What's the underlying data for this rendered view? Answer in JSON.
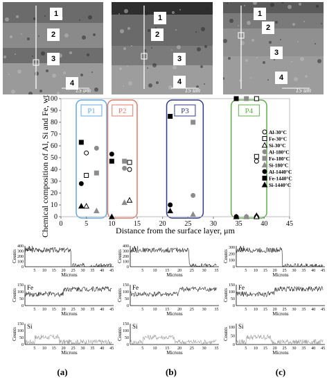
{
  "sem_images": [
    {
      "labels": [
        "1",
        "2",
        "3",
        "4"
      ],
      "scale": "15 um"
    },
    {
      "labels": [
        "1",
        "2",
        "3",
        "4"
      ],
      "scale": "15 um"
    },
    {
      "labels": [
        "1",
        "2",
        "3",
        "4"
      ],
      "scale": "15 um"
    }
  ],
  "chart_data": [
    {
      "type": "scatter",
      "title": "",
      "xlabel": "Distance from the surface layer, μm",
      "ylabel": "Chemical composition of Al, Si and Fe, wt.%",
      "xlim": [
        0,
        45
      ],
      "ylim": [
        0,
        100
      ],
      "xticks": [
        0,
        5,
        10,
        15,
        20,
        25,
        30,
        35,
        40,
        45
      ],
      "yticks": [
        0,
        10,
        20,
        30,
        40,
        50,
        60,
        70,
        80,
        90,
        100
      ],
      "grid": false,
      "legend_position": "right",
      "regions": [
        "P1",
        "P2",
        "P3",
        "P4"
      ],
      "series": [
        {
          "name": "Al-30°C",
          "marker": "circle-open",
          "points": [
            [
              5,
              54
            ],
            [
              13.5,
              40
            ],
            [
              38.5,
              47
            ],
            [
              38.5,
              0
            ]
          ]
        },
        {
          "name": "Fe-30°C",
          "marker": "square-open",
          "points": [
            [
              5,
              35
            ],
            [
              13.5,
              46
            ],
            [
              38.5,
              51
            ],
            [
              38.5,
              100
            ]
          ]
        },
        {
          "name": "Si-30°C",
          "marker": "triangle-open",
          "points": [
            [
              5,
              9
            ],
            [
              13.5,
              14
            ],
            [
              38.5,
              1
            ],
            [
              38.5,
              0
            ]
          ]
        },
        {
          "name": "Al-180°C",
          "marker": "circle-gray",
          "points": [
            [
              7,
              58
            ],
            [
              12.5,
              41
            ],
            [
              26,
              18
            ],
            [
              36.5,
              0
            ]
          ]
        },
        {
          "name": "Fe-180°C",
          "marker": "square-gray",
          "points": [
            [
              7,
              37
            ],
            [
              12.5,
              47
            ],
            [
              26,
              80
            ],
            [
              36.5,
              100
            ]
          ]
        },
        {
          "name": "Si-180°C",
          "marker": "triangle-gray",
          "points": [
            [
              7,
              5
            ],
            [
              12.5,
              12
            ],
            [
              26,
              2
            ],
            [
              36.5,
              0
            ]
          ]
        },
        {
          "name": "Al-1440°C",
          "marker": "circle-black",
          "points": [
            [
              4,
              28
            ],
            [
              10,
              53
            ],
            [
              21.5,
              10
            ],
            [
              34.5,
              0
            ]
          ]
        },
        {
          "name": "Fe-1440°C",
          "marker": "square-black",
          "points": [
            [
              4,
              63
            ],
            [
              10,
              47
            ],
            [
              21.5,
              85
            ],
            [
              34.5,
              100
            ]
          ]
        },
        {
          "name": "Si-1440°C",
          "marker": "triangle-black",
          "points": [
            [
              4,
              9
            ],
            [
              10,
              0
            ],
            [
              21.5,
              5
            ],
            [
              34.5,
              0
            ]
          ]
        }
      ]
    }
  ],
  "profiles": {
    "ylabel": "Counts",
    "xlabel": "Microns",
    "columns": [
      {
        "label": "(a)",
        "xticks": [
          5,
          10,
          15,
          20,
          25,
          30,
          35,
          40,
          45
        ],
        "rows": [
          {
            "element": "Al",
            "yticks": [
              0,
              100,
              200,
              300,
              400
            ],
            "ymax": 400
          },
          {
            "element": "Fe",
            "yticks": [
              0,
              50,
              100,
              150
            ],
            "ymax": 150
          },
          {
            "element": "Si",
            "yticks": [
              0,
              50,
              100,
              150
            ],
            "ymax": 150
          }
        ]
      },
      {
        "label": "(b)",
        "xticks": [
          5,
          10,
          15,
          20,
          25,
          30,
          35
        ],
        "rows": [
          {
            "element": "Al",
            "yticks": [
              0,
              100,
              200,
              300,
              400
            ],
            "ymax": 400
          },
          {
            "element": "Fe",
            "yticks": [
              0,
              50,
              100,
              150
            ],
            "ymax": 150
          },
          {
            "element": "Si",
            "yticks": [
              0,
              50,
              100,
              150
            ],
            "ymax": 150
          }
        ]
      },
      {
        "label": "(c)",
        "xticks": [
          5,
          10,
          15,
          20,
          25,
          30,
          35,
          40,
          45
        ],
        "rows": [
          {
            "element": "Al",
            "yticks": [
              0,
              100,
              200,
              300
            ],
            "ymax": 320
          },
          {
            "element": "Fe",
            "yticks": [
              0,
              50,
              100,
              150
            ],
            "ymax": 150
          },
          {
            "element": "Si",
            "yticks": [
              0,
              50,
              100
            ],
            "ymax": 120
          }
        ]
      }
    ]
  }
}
